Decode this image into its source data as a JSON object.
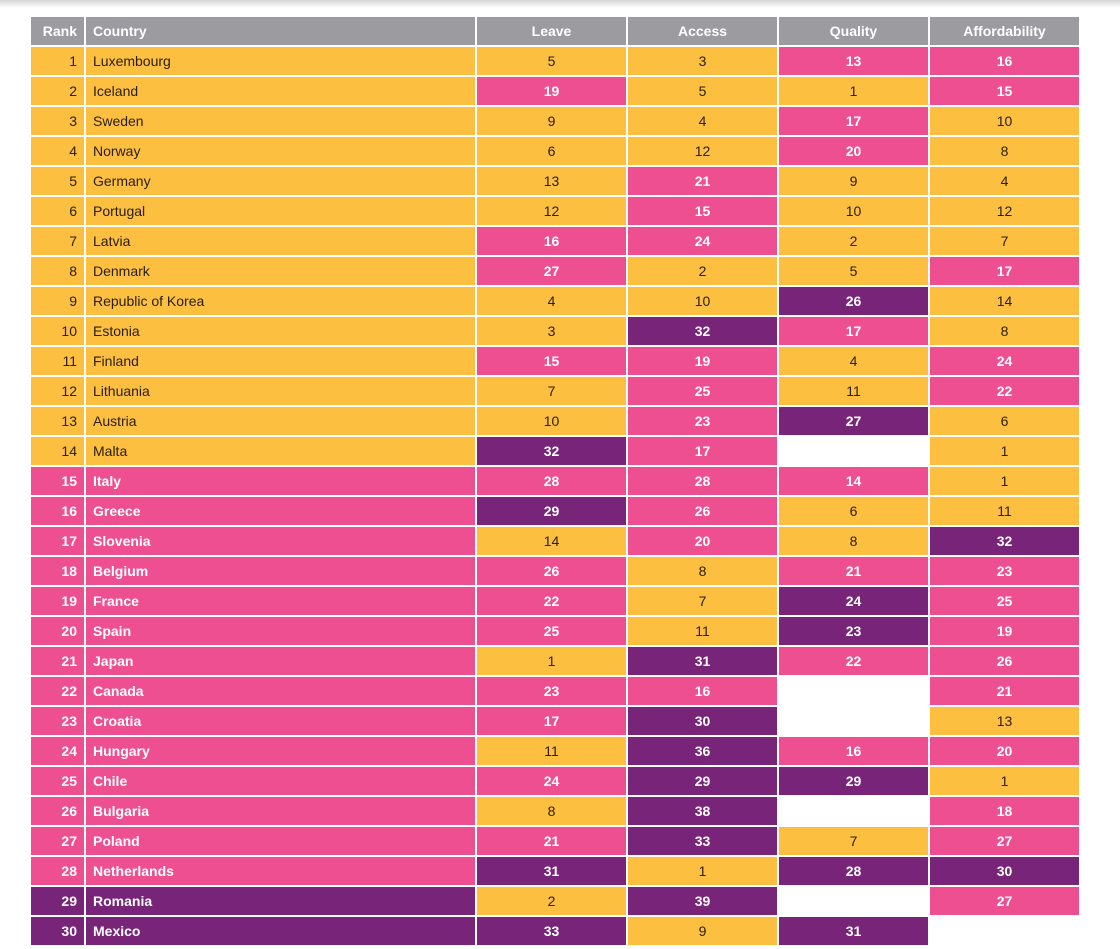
{
  "colors": {
    "y": "#fdbf3f",
    "p": "#ee4f90",
    "v": "#782479",
    "header": "#9c9ca0"
  },
  "headers": [
    "Rank",
    "Country",
    "Leave",
    "Access",
    "Quality",
    "Affordability"
  ],
  "rows": [
    {
      "rank": "1",
      "country": "Luxembourg",
      "tier": "y",
      "cells": [
        [
          "5",
          "y"
        ],
        [
          "3",
          "y"
        ],
        [
          "13",
          "p"
        ],
        [
          "16",
          "p"
        ]
      ]
    },
    {
      "rank": "2",
      "country": "Iceland",
      "tier": "y",
      "cells": [
        [
          "19",
          "p"
        ],
        [
          "5",
          "y"
        ],
        [
          "1",
          "y"
        ],
        [
          "15",
          "p"
        ]
      ]
    },
    {
      "rank": "3",
      "country": "Sweden",
      "tier": "y",
      "cells": [
        [
          "9",
          "y"
        ],
        [
          "4",
          "y"
        ],
        [
          "17",
          "p"
        ],
        [
          "10",
          "y"
        ]
      ]
    },
    {
      "rank": "4",
      "country": "Norway",
      "tier": "y",
      "cells": [
        [
          "6",
          "y"
        ],
        [
          "12",
          "y"
        ],
        [
          "20",
          "p"
        ],
        [
          "8",
          "y"
        ]
      ]
    },
    {
      "rank": "5",
      "country": "Germany",
      "tier": "y",
      "cells": [
        [
          "13",
          "y"
        ],
        [
          "21",
          "p"
        ],
        [
          "9",
          "y"
        ],
        [
          "4",
          "y"
        ]
      ]
    },
    {
      "rank": "6",
      "country": "Portugal",
      "tier": "y",
      "cells": [
        [
          "12",
          "y"
        ],
        [
          "15",
          "p"
        ],
        [
          "10",
          "y"
        ],
        [
          "12",
          "y"
        ]
      ]
    },
    {
      "rank": "7",
      "country": "Latvia",
      "tier": "y",
      "cells": [
        [
          "16",
          "p"
        ],
        [
          "24",
          "p"
        ],
        [
          "2",
          "y"
        ],
        [
          "7",
          "y"
        ]
      ]
    },
    {
      "rank": "8",
      "country": "Denmark",
      "tier": "y",
      "cells": [
        [
          "27",
          "p"
        ],
        [
          "2",
          "y"
        ],
        [
          "5",
          "y"
        ],
        [
          "17",
          "p"
        ]
      ]
    },
    {
      "rank": "9",
      "country": "Republic of Korea",
      "tier": "y",
      "cells": [
        [
          "4",
          "y"
        ],
        [
          "10",
          "y"
        ],
        [
          "26",
          "v"
        ],
        [
          "14",
          "y"
        ]
      ]
    },
    {
      "rank": "10",
      "country": "Estonia",
      "tier": "y",
      "cells": [
        [
          "3",
          "y"
        ],
        [
          "32",
          "v"
        ],
        [
          "17",
          "p"
        ],
        [
          "8",
          "y"
        ]
      ]
    },
    {
      "rank": "11",
      "country": "Finland",
      "tier": "y",
      "cells": [
        [
          "15",
          "p"
        ],
        [
          "19",
          "p"
        ],
        [
          "4",
          "y"
        ],
        [
          "24",
          "p"
        ]
      ]
    },
    {
      "rank": "12",
      "country": "Lithuania",
      "tier": "y",
      "cells": [
        [
          "7",
          "y"
        ],
        [
          "25",
          "p"
        ],
        [
          "11",
          "y"
        ],
        [
          "22",
          "p"
        ]
      ]
    },
    {
      "rank": "13",
      "country": "Austria",
      "tier": "y",
      "cells": [
        [
          "10",
          "y"
        ],
        [
          "23",
          "p"
        ],
        [
          "27",
          "v"
        ],
        [
          "6",
          "y"
        ]
      ]
    },
    {
      "rank": "14",
      "country": "Malta",
      "tier": "y",
      "cells": [
        [
          "32",
          "v"
        ],
        [
          "17",
          "p"
        ],
        [
          "",
          "e"
        ],
        [
          "1",
          "y"
        ]
      ]
    },
    {
      "rank": "15",
      "country": "Italy",
      "tier": "p",
      "cells": [
        [
          "28",
          "p"
        ],
        [
          "28",
          "p"
        ],
        [
          "14",
          "p"
        ],
        [
          "1",
          "y"
        ]
      ]
    },
    {
      "rank": "16",
      "country": "Greece",
      "tier": "p",
      "cells": [
        [
          "29",
          "v"
        ],
        [
          "26",
          "p"
        ],
        [
          "6",
          "y"
        ],
        [
          "11",
          "y"
        ]
      ]
    },
    {
      "rank": "17",
      "country": "Slovenia",
      "tier": "p",
      "cells": [
        [
          "14",
          "y"
        ],
        [
          "20",
          "p"
        ],
        [
          "8",
          "y"
        ],
        [
          "32",
          "v"
        ]
      ]
    },
    {
      "rank": "18",
      "country": "Belgium",
      "tier": "p",
      "cells": [
        [
          "26",
          "p"
        ],
        [
          "8",
          "y"
        ],
        [
          "21",
          "p"
        ],
        [
          "23",
          "p"
        ]
      ]
    },
    {
      "rank": "19",
      "country": "France",
      "tier": "p",
      "cells": [
        [
          "22",
          "p"
        ],
        [
          "7",
          "y"
        ],
        [
          "24",
          "v"
        ],
        [
          "25",
          "p"
        ]
      ]
    },
    {
      "rank": "20",
      "country": "Spain",
      "tier": "p",
      "cells": [
        [
          "25",
          "p"
        ],
        [
          "11",
          "y"
        ],
        [
          "23",
          "v"
        ],
        [
          "19",
          "p"
        ]
      ]
    },
    {
      "rank": "21",
      "country": "Japan",
      "tier": "p",
      "cells": [
        [
          "1",
          "y"
        ],
        [
          "31",
          "v"
        ],
        [
          "22",
          "p"
        ],
        [
          "26",
          "p"
        ]
      ]
    },
    {
      "rank": "22",
      "country": "Canada",
      "tier": "p",
      "cells": [
        [
          "23",
          "p"
        ],
        [
          "16",
          "p"
        ],
        [
          "",
          "e"
        ],
        [
          "21",
          "p"
        ]
      ]
    },
    {
      "rank": "23",
      "country": "Croatia",
      "tier": "p",
      "cells": [
        [
          "17",
          "p"
        ],
        [
          "30",
          "v"
        ],
        [
          "",
          "e"
        ],
        [
          "13",
          "y"
        ]
      ]
    },
    {
      "rank": "24",
      "country": "Hungary",
      "tier": "p",
      "cells": [
        [
          "11",
          "y"
        ],
        [
          "36",
          "v"
        ],
        [
          "16",
          "p"
        ],
        [
          "20",
          "p"
        ]
      ]
    },
    {
      "rank": "25",
      "country": "Chile",
      "tier": "p",
      "cells": [
        [
          "24",
          "p"
        ],
        [
          "29",
          "v"
        ],
        [
          "29",
          "v"
        ],
        [
          "1",
          "y"
        ]
      ]
    },
    {
      "rank": "26",
      "country": "Bulgaria",
      "tier": "p",
      "cells": [
        [
          "8",
          "y"
        ],
        [
          "38",
          "v"
        ],
        [
          "",
          "e"
        ],
        [
          "18",
          "p"
        ]
      ]
    },
    {
      "rank": "27",
      "country": "Poland",
      "tier": "p",
      "cells": [
        [
          "21",
          "p"
        ],
        [
          "33",
          "v"
        ],
        [
          "7",
          "y"
        ],
        [
          "27",
          "p"
        ]
      ]
    },
    {
      "rank": "28",
      "country": "Netherlands",
      "tier": "p",
      "cells": [
        [
          "31",
          "v"
        ],
        [
          "1",
          "y"
        ],
        [
          "28",
          "v"
        ],
        [
          "30",
          "v"
        ]
      ]
    },
    {
      "rank": "29",
      "country": "Romania",
      "tier": "v",
      "cells": [
        [
          "2",
          "y"
        ],
        [
          "39",
          "v"
        ],
        [
          "",
          "e"
        ],
        [
          "27",
          "p"
        ]
      ]
    },
    {
      "rank": "30",
      "country": "Mexico",
      "tier": "v",
      "cells": [
        [
          "33",
          "v"
        ],
        [
          "9",
          "y"
        ],
        [
          "31",
          "v"
        ],
        [
          "",
          "e"
        ]
      ]
    }
  ]
}
